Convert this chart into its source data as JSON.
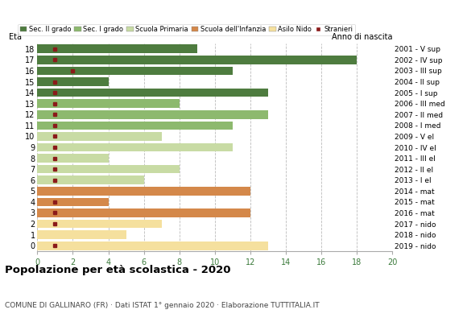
{
  "ages": [
    0,
    1,
    2,
    3,
    4,
    5,
    6,
    7,
    8,
    9,
    10,
    11,
    12,
    13,
    14,
    15,
    16,
    17,
    18
  ],
  "years": [
    "2019 - nido",
    "2018 - nido",
    "2017 - nido",
    "2016 - mat",
    "2015 - mat",
    "2014 - mat",
    "2013 - I el",
    "2012 - II el",
    "2011 - III el",
    "2010 - IV el",
    "2009 - V el",
    "2008 - I med",
    "2007 - II med",
    "2006 - III med",
    "2005 - I sup",
    "2004 - II sup",
    "2003 - III sup",
    "2002 - IV sup",
    "2001 - V sup"
  ],
  "bar_values": [
    13,
    5,
    7,
    12,
    4,
    12,
    6,
    8,
    4,
    11,
    7,
    11,
    13,
    8,
    13,
    4,
    11,
    18,
    9
  ],
  "stranieri_values": [
    1,
    0,
    1,
    1,
    1,
    0,
    1,
    1,
    1,
    1,
    1,
    1,
    1,
    1,
    1,
    1,
    2,
    1,
    1
  ],
  "categories": {
    "asilo_nido": {
      "ages": [
        0,
        1,
        2
      ],
      "color": "#f5e09e"
    },
    "infanzia": {
      "ages": [
        3,
        4,
        5
      ],
      "color": "#d4884a"
    },
    "primaria": {
      "ages": [
        6,
        7,
        8,
        9,
        10
      ],
      "color": "#c8dba4"
    },
    "media": {
      "ages": [
        11,
        12,
        13
      ],
      "color": "#8db96e"
    },
    "superiore": {
      "ages": [
        14,
        15,
        16,
        17,
        18
      ],
      "color": "#4e7c3f"
    }
  },
  "stranieri_color": "#8b1a1a",
  "legend_labels": [
    "Sec. II grado",
    "Sec. I grado",
    "Scuola Primaria",
    "Scuola dell'Infanzia",
    "Asilo Nido",
    "Stranieri"
  ],
  "legend_colors": [
    "#4e7c3f",
    "#8db96e",
    "#c8dba4",
    "#d4884a",
    "#f5e09e",
    "#8b1a1a"
  ],
  "title": "Popolazione per età scolastica - 2020",
  "subtitle": "COMUNE DI GALLINARO (FR) · Dati ISTAT 1° gennaio 2020 · Elaborazione TUTTITALIA.IT",
  "label_eta": "Età",
  "label_anno": "Anno di nascita",
  "xlim": [
    0,
    20
  ],
  "xticks": [
    0,
    2,
    4,
    6,
    8,
    10,
    12,
    14,
    16,
    18,
    20
  ],
  "background_color": "#ffffff",
  "grid_color": "#bbbbbb"
}
